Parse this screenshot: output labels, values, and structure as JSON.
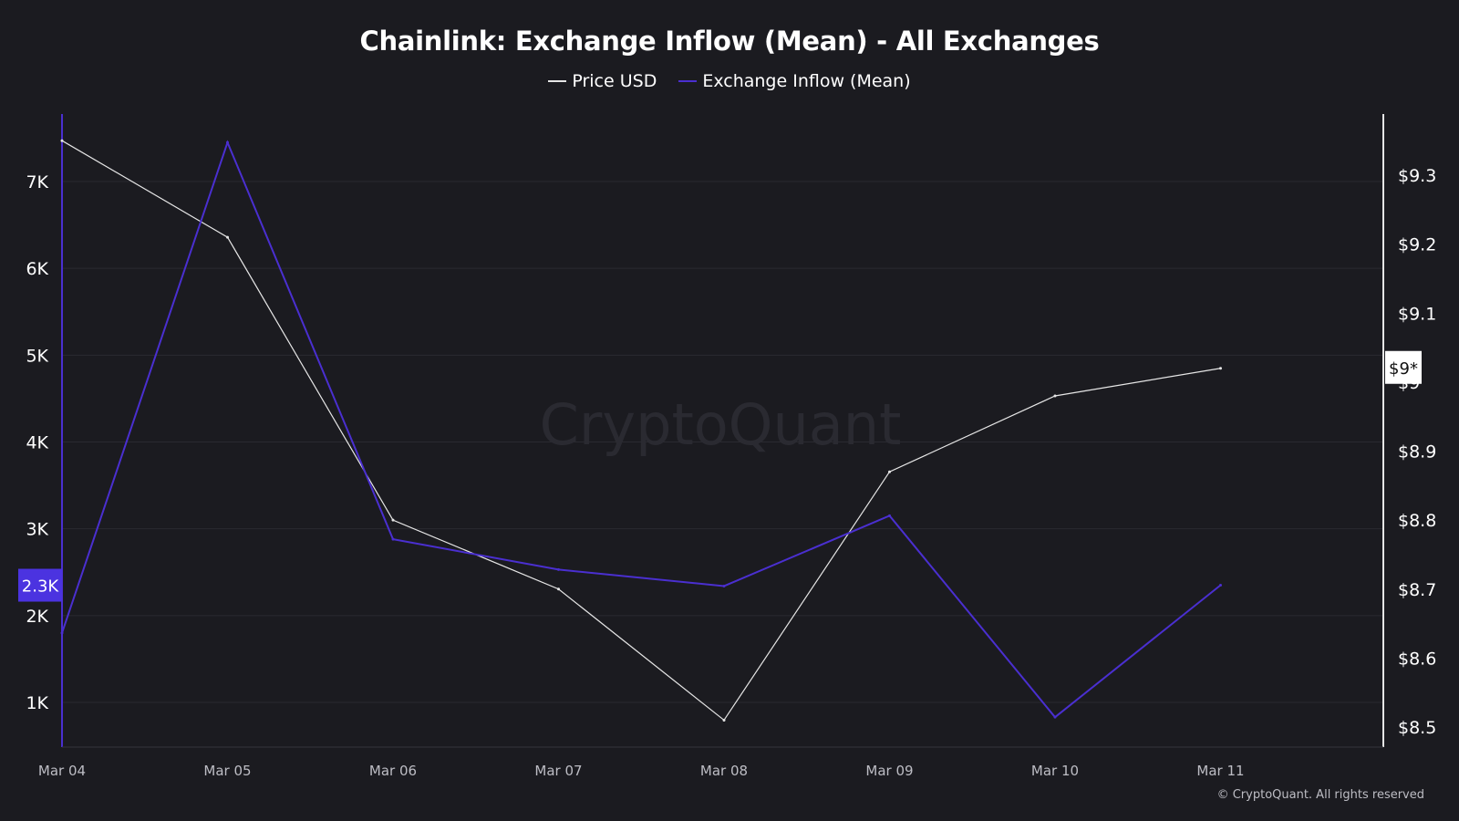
{
  "title": "Chainlink: Exchange Inflow (Mean) - All Exchanges",
  "watermark": "CryptoQuant",
  "copyright": "© CryptoQuant. All rights reserved",
  "colors": {
    "background": "#1b1b20",
    "price": "#e6e6e6",
    "inflow": "#4a2fd0",
    "inflow_badge": "#4b33e0",
    "grid": "#2a2a30"
  },
  "chart_data": {
    "type": "line",
    "categories": [
      "Mar 04",
      "Mar 05",
      "Mar 06",
      "Mar 07",
      "Mar 08",
      "Mar 09",
      "Mar 10",
      "Mar 11"
    ],
    "series": [
      {
        "name": "Price USD",
        "axis": "right",
        "values": [
          9.35,
          9.21,
          8.8,
          8.7,
          8.51,
          8.87,
          8.98,
          9.02
        ]
      },
      {
        "name": "Exchange Inflow (Mean)",
        "axis": "left",
        "values": [
          1800,
          7450,
          2880,
          2530,
          2340,
          3150,
          830,
          2350
        ]
      }
    ],
    "left_axis": {
      "ticks": [
        1000,
        2000,
        3000,
        4000,
        5000,
        6000,
        7000
      ],
      "tick_labels": [
        "1K",
        "2K",
        "3K",
        "4K",
        "5K",
        "6K",
        "7K"
      ],
      "current_label": "2.3K",
      "current_value": 2350
    },
    "right_axis": {
      "ticks": [
        8.5,
        8.6,
        8.7,
        8.8,
        8.9,
        9.0,
        9.1,
        9.2,
        9.3
      ],
      "tick_labels": [
        "$8.5",
        "$8.6",
        "$8.7",
        "$8.8",
        "$8.9",
        "$9",
        "$9.1",
        "$9.2",
        "$9.3"
      ],
      "current_label": "$9*",
      "current_value": 9.02
    },
    "grid": true,
    "legend_position": "top-center"
  }
}
